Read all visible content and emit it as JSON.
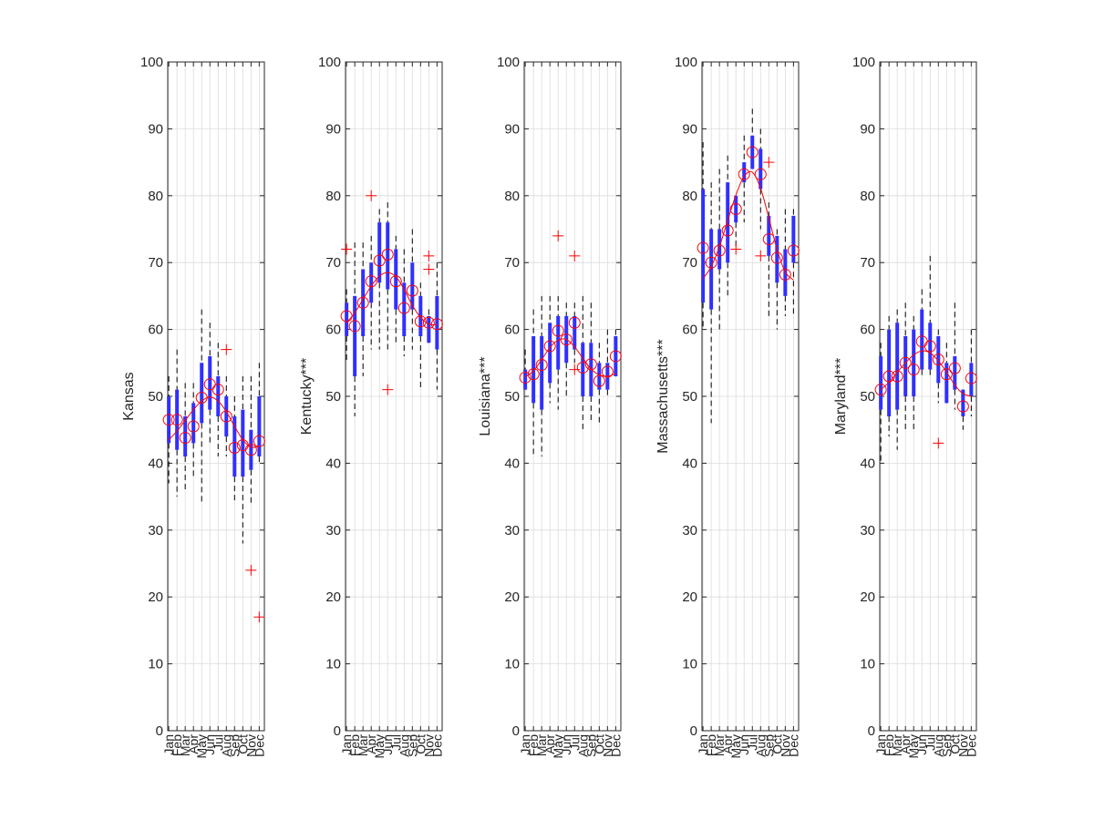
{
  "figure": {
    "background": "#ffffff",
    "colors": {
      "axis": "#262626",
      "grid": "#dcdcdc",
      "box": "#3030ff",
      "whisker": "#000000",
      "median_marker": "#ff0000",
      "outlier": "#ff0000",
      "fit_line": "#ff0000"
    },
    "markers": {
      "median": "circle",
      "outlier": "plus"
    }
  },
  "chart_data": [
    {
      "type": "box",
      "ylabel": "Kansas",
      "ylim": [
        0,
        100
      ],
      "yticks": [
        0,
        10,
        20,
        30,
        40,
        50,
        60,
        70,
        80,
        90,
        100
      ],
      "categories": [
        "Jan",
        "Feb",
        "Mar",
        "Apr",
        "May",
        "Jun",
        "Jul",
        "Aug",
        "Sep",
        "Oct",
        "Nov",
        "Dec"
      ],
      "grid": true,
      "boxes": [
        {
          "whisker_low": 37,
          "q1": 43,
          "median": 46.5,
          "q3": 50,
          "whisker_high": 53
        },
        {
          "whisker_low": 35,
          "q1": 42,
          "median": 46.5,
          "q3": 51,
          "whisker_high": 57
        },
        {
          "whisker_low": 36,
          "q1": 41,
          "median": 43.8,
          "q3": 47,
          "whisker_high": 52
        },
        {
          "whisker_low": 38,
          "q1": 43,
          "median": 45.5,
          "q3": 49,
          "whisker_high": 52
        },
        {
          "whisker_low": 34,
          "q1": 46,
          "median": 49.8,
          "q3": 55,
          "whisker_high": 63
        },
        {
          "whisker_low": 43,
          "q1": 48,
          "median": 51.8,
          "q3": 56,
          "whisker_high": 61
        },
        {
          "whisker_low": 41,
          "q1": 47,
          "median": 51,
          "q3": 53,
          "whisker_high": 58
        },
        {
          "whisker_low": 41,
          "q1": 44,
          "median": 47,
          "q3": 50,
          "whisker_high": 53
        },
        {
          "whisker_low": 34,
          "q1": 38,
          "median": 42.3,
          "q3": 47,
          "whisker_high": 50
        },
        {
          "whisker_low": 28,
          "q1": 38,
          "median": 42.7,
          "q3": 48,
          "whisker_high": 53
        },
        {
          "whisker_low": 34,
          "q1": 39,
          "median": 42,
          "q3": 45,
          "whisker_high": 53
        },
        {
          "whisker_low": 40,
          "q1": 41,
          "median": 43.3,
          "q3": 50,
          "whisker_high": 55
        }
      ],
      "outliers": [
        {
          "month": "Aug",
          "value": 57
        },
        {
          "month": "Nov",
          "value": 24
        },
        {
          "month": "Dec",
          "value": 17
        }
      ],
      "fit": [
        43.5,
        44.8,
        46.4,
        48.0,
        49.3,
        49.9,
        49.3,
        47.7,
        45.5,
        43.5,
        42.4,
        42.5
      ]
    },
    {
      "type": "box",
      "ylabel": "Kentucky***",
      "ylim": [
        0,
        100
      ],
      "yticks": [
        0,
        10,
        20,
        30,
        40,
        50,
        60,
        70,
        80,
        90,
        100
      ],
      "categories": [
        "Jan",
        "Feb",
        "Mar",
        "Apr",
        "May",
        "Jun",
        "Jul",
        "Aug",
        "Sep",
        "Oct",
        "Nov",
        "Dec"
      ],
      "grid": true,
      "boxes": [
        {
          "whisker_low": 55,
          "q1": 59,
          "median": 62,
          "q3": 64,
          "whisker_high": 66
        },
        {
          "whisker_low": 47,
          "q1": 53,
          "median": 60.5,
          "q3": 65,
          "whisker_high": 73
        },
        {
          "whisker_low": 53,
          "q1": 59,
          "median": 64,
          "q3": 69,
          "whisker_high": 73
        },
        {
          "whisker_low": 57,
          "q1": 64,
          "median": 67.2,
          "q3": 70,
          "whisker_high": 74
        },
        {
          "whisker_low": 57,
          "q1": 67,
          "median": 70.3,
          "q3": 76,
          "whisker_high": 78
        },
        {
          "whisker_low": 57,
          "q1": 66,
          "median": 71.2,
          "q3": 76,
          "whisker_high": 79
        },
        {
          "whisker_low": 58,
          "q1": 63,
          "median": 67.2,
          "q3": 72,
          "whisker_high": 74
        },
        {
          "whisker_low": 56,
          "q1": 59,
          "median": 63.2,
          "q3": 67,
          "whisker_high": 72
        },
        {
          "whisker_low": 57,
          "q1": 63,
          "median": 65.8,
          "q3": 70,
          "whisker_high": 75
        },
        {
          "whisker_low": 51,
          "q1": 59,
          "median": 61.2,
          "q3": 65,
          "whisker_high": 67
        },
        {
          "whisker_low": 58,
          "q1": 58,
          "median": 61,
          "q3": 62,
          "whisker_high": 63
        },
        {
          "whisker_low": 51,
          "q1": 57,
          "median": 60.8,
          "q3": 65,
          "whisker_high": 70
        }
      ],
      "outliers": [
        {
          "month": "Jan",
          "value": 72
        },
        {
          "month": "Apr",
          "value": 80
        },
        {
          "month": "Jun",
          "value": 51
        },
        {
          "month": "Nov",
          "value": 71
        },
        {
          "month": "Nov",
          "value": 69
        }
      ],
      "fit": [
        61.0,
        62.5,
        64.5,
        66.5,
        68.0,
        68.5,
        67.9,
        66.0,
        63.6,
        61.8,
        60.8,
        60.7
      ]
    },
    {
      "type": "box",
      "ylabel": "Louisiana***",
      "ylim": [
        0,
        100
      ],
      "yticks": [
        0,
        10,
        20,
        30,
        40,
        50,
        60,
        70,
        80,
        90,
        100
      ],
      "categories": [
        "Jan",
        "Feb",
        "Mar",
        "Apr",
        "May",
        "Jun",
        "Jul",
        "Aug",
        "Sep",
        "Oct",
        "Nov",
        "Dec"
      ],
      "grid": true,
      "boxes": [
        {
          "whisker_low": 51,
          "q1": 51,
          "median": 52.8,
          "q3": 54,
          "whisker_high": 57
        },
        {
          "whisker_low": 41,
          "q1": 49,
          "median": 53.3,
          "q3": 59,
          "whisker_high": 63
        },
        {
          "whisker_low": 41,
          "q1": 48,
          "median": 54.7,
          "q3": 59,
          "whisker_high": 65
        },
        {
          "whisker_low": 49,
          "q1": 52,
          "median": 57.5,
          "q3": 61,
          "whisker_high": 65
        },
        {
          "whisker_low": 48,
          "q1": 54,
          "median": 59.8,
          "q3": 62,
          "whisker_high": 65
        },
        {
          "whisker_low": 50,
          "q1": 55,
          "median": 58.5,
          "q3": 62,
          "whisker_high": 64
        },
        {
          "whisker_low": 55,
          "q1": 57,
          "median": 61,
          "q3": 62,
          "whisker_high": 64
        },
        {
          "whisker_low": 45,
          "q1": 50,
          "median": 54.3,
          "q3": 58,
          "whisker_high": 65
        },
        {
          "whisker_low": 46,
          "q1": 50,
          "median": 54.8,
          "q3": 58,
          "whisker_high": 64
        },
        {
          "whisker_low": 46,
          "q1": 51,
          "median": 52.3,
          "q3": 55,
          "whisker_high": 58
        },
        {
          "whisker_low": 50,
          "q1": 51,
          "median": 53.7,
          "q3": 55,
          "whisker_high": 60
        },
        {
          "whisker_low": 53,
          "q1": 53,
          "median": 56,
          "q3": 59,
          "whisker_high": 60
        }
      ],
      "outliers": [
        {
          "month": "May",
          "value": 74
        },
        {
          "month": "Jul",
          "value": 71
        },
        {
          "month": "Jul",
          "value": 54
        }
      ],
      "fit": [
        52.9,
        53.8,
        55.5,
        57.3,
        58.4,
        58.5,
        57.4,
        55.7,
        54.1,
        53.2,
        53.0,
        53.4
      ]
    },
    {
      "type": "box",
      "ylabel": "Massachusetts***",
      "ylim": [
        0,
        100
      ],
      "yticks": [
        0,
        10,
        20,
        30,
        40,
        50,
        60,
        70,
        80,
        90,
        100
      ],
      "categories": [
        "Jan",
        "Feb",
        "Mar",
        "Apr",
        "May",
        "Jun",
        "Jul",
        "Aug",
        "Sep",
        "Oct",
        "Nov",
        "Dec"
      ],
      "grid": true,
      "boxes": [
        {
          "whisker_low": 60,
          "q1": 64,
          "median": 72.2,
          "q3": 81,
          "whisker_high": 88
        },
        {
          "whisker_low": 46,
          "q1": 63,
          "median": 70,
          "q3": 75,
          "whisker_high": 82
        },
        {
          "whisker_low": 60,
          "q1": 69,
          "median": 71.8,
          "q3": 75,
          "whisker_high": 84
        },
        {
          "whisker_low": 65,
          "q1": 70,
          "median": 74.8,
          "q3": 82,
          "whisker_high": 86
        },
        {
          "whisker_low": 72,
          "q1": 76,
          "median": 78,
          "q3": 80,
          "whisker_high": 80
        },
        {
          "whisker_low": 76,
          "q1": 82,
          "median": 83.2,
          "q3": 85,
          "whisker_high": 89
        },
        {
          "whisker_low": 84,
          "q1": 84,
          "median": 86.5,
          "q3": 89,
          "whisker_high": 93
        },
        {
          "whisker_low": 75,
          "q1": 81,
          "median": 83.2,
          "q3": 87,
          "whisker_high": 90
        },
        {
          "whisker_low": 62,
          "q1": 71,
          "median": 73.5,
          "q3": 77,
          "whisker_high": 79
        },
        {
          "whisker_low": 60,
          "q1": 67,
          "median": 70.7,
          "q3": 74,
          "whisker_high": 75
        },
        {
          "whisker_low": 62,
          "q1": 65,
          "median": 68.2,
          "q3": 72,
          "whisker_high": 78
        },
        {
          "whisker_low": 62,
          "q1": 70,
          "median": 71.8,
          "q3": 77,
          "whisker_high": 78
        }
      ],
      "outliers": [
        {
          "month": "May",
          "value": 72
        },
        {
          "month": "Aug",
          "value": 71
        },
        {
          "month": "Sep",
          "value": 85
        }
      ],
      "fit": [
        67.6,
        69.4,
        72.4,
        76.3,
        80.1,
        82.9,
        83.5,
        81.1,
        76.7,
        72.0,
        68.6,
        67.4
      ]
    },
    {
      "type": "box",
      "ylabel": "Maryland***",
      "ylim": [
        0,
        100
      ],
      "yticks": [
        0,
        10,
        20,
        30,
        40,
        50,
        60,
        70,
        80,
        90,
        100
      ],
      "categories": [
        "Jan",
        "Feb",
        "Mar",
        "Apr",
        "May",
        "Jun",
        "Jul",
        "Aug",
        "Sep",
        "Oct",
        "Nov",
        "Dec"
      ],
      "grid": true,
      "boxes": [
        {
          "whisker_low": 40,
          "q1": 48,
          "median": 51,
          "q3": 56,
          "whisker_high": 58
        },
        {
          "whisker_low": 44,
          "q1": 47,
          "median": 53,
          "q3": 60,
          "whisker_high": 62
        },
        {
          "whisker_low": 42,
          "q1": 48,
          "median": 53,
          "q3": 61,
          "whisker_high": 63
        },
        {
          "whisker_low": 45,
          "q1": 50,
          "median": 55,
          "q3": 59,
          "whisker_high": 64
        },
        {
          "whisker_low": 45,
          "q1": 50,
          "median": 54,
          "q3": 60,
          "whisker_high": 62
        },
        {
          "whisker_low": 53,
          "q1": 54,
          "median": 58.2,
          "q3": 63,
          "whisker_high": 66
        },
        {
          "whisker_low": 53,
          "q1": 54,
          "median": 57.5,
          "q3": 61,
          "whisker_high": 71
        },
        {
          "whisker_low": 49,
          "q1": 52,
          "median": 55.5,
          "q3": 59,
          "whisker_high": 60
        },
        {
          "whisker_low": 49,
          "q1": 49,
          "median": 53.3,
          "q3": 55,
          "whisker_high": 58
        },
        {
          "whisker_low": 48,
          "q1": 51,
          "median": 54.2,
          "q3": 56,
          "whisker_high": 64
        },
        {
          "whisker_low": 45,
          "q1": 47,
          "median": 48.5,
          "q3": 51,
          "whisker_high": 51
        },
        {
          "whisker_low": 47,
          "q1": 50,
          "median": 52.7,
          "q3": 55,
          "whisker_high": 60
        }
      ],
      "outliers": [
        {
          "month": "Aug",
          "value": 43
        }
      ],
      "fit": [
        51.0,
        52.1,
        53.6,
        55.0,
        56.2,
        56.8,
        56.5,
        55.3,
        53.6,
        51.7,
        50.4,
        50.0
      ]
    }
  ]
}
